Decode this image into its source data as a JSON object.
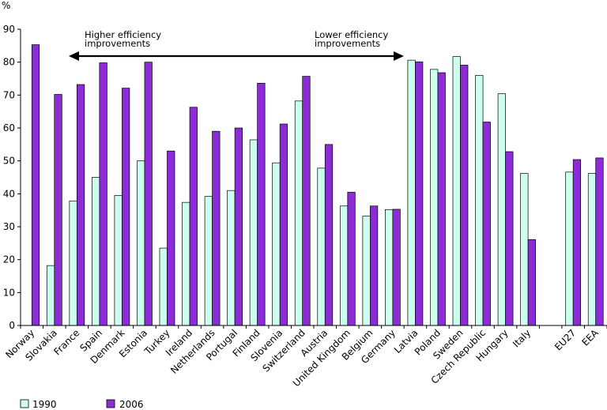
{
  "chart_data": {
    "type": "bar",
    "title": "",
    "xlabel": "",
    "ylabel": "%",
    "ylim": [
      0,
      90
    ],
    "yticks": [
      0,
      10,
      20,
      30,
      40,
      50,
      60,
      70,
      80,
      90
    ],
    "grid": false,
    "legend_position": "bottom-left",
    "categories": [
      "Norway",
      "Slovakia",
      "France",
      "Spain",
      "Denmark",
      "Estonia",
      "Turkey",
      "Ireland",
      "Netherlands",
      "Portugal",
      "Finland",
      "Slovenia",
      "Switzerland",
      "Austria",
      "United Kingdom",
      "Belgium",
      "Germany",
      "Latvia",
      "Poland",
      "Sweden",
      "Czech Republic",
      "Hungary",
      "Italy",
      "",
      "EU27",
      "EEA"
    ],
    "series": [
      {
        "name": "1990",
        "color": "#ccffee",
        "values": [
          null,
          18.2,
          37.8,
          45.0,
          39.5,
          50.0,
          23.5,
          37.4,
          39.2,
          41.0,
          56.4,
          49.4,
          68.2,
          47.8,
          36.3,
          33.2,
          35.2,
          80.6,
          77.8,
          81.7,
          76.0,
          70.4,
          46.2,
          null,
          46.6,
          46.2
        ]
      },
      {
        "name": "2006",
        "color": "#8b2cd6",
        "values": [
          85.3,
          70.2,
          73.2,
          79.8,
          72.1,
          80.0,
          53.0,
          66.3,
          59.0,
          60.0,
          73.6,
          61.2,
          75.7,
          55.0,
          40.5,
          36.3,
          35.3,
          80.1,
          76.8,
          79.1,
          61.8,
          52.8,
          26.1,
          null,
          50.4,
          50.9
        ]
      }
    ],
    "annotations": {
      "left_text": [
        "Higher efficiency",
        "improvements"
      ],
      "right_text": [
        "Lower efficiency",
        "improvements"
      ],
      "arrow": "double-headed, from France to Latvia"
    }
  }
}
